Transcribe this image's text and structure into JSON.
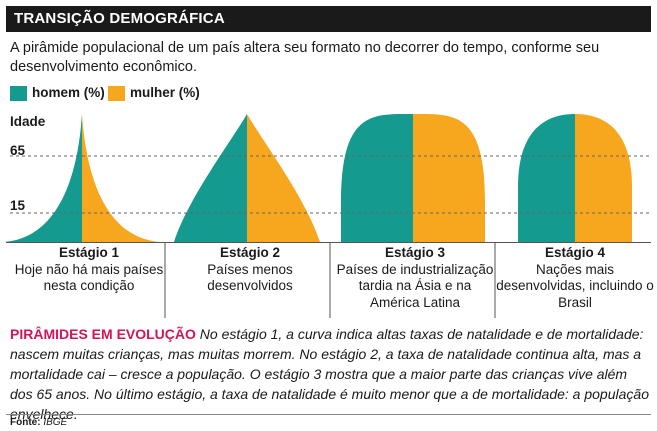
{
  "header": {
    "title": "TRANSIÇÃO DEMOGRÁFICA"
  },
  "subtitle": "A pirâmide populacional de um país altera seu formato no decorrer do tempo, conforme seu desenvolvimento econômico.",
  "colors": {
    "men": "#149a8f",
    "women": "#f7a71e",
    "note_highlight": "#d4145a"
  },
  "chart_data": {
    "type": "area",
    "legend": [
      "homem (%)",
      "mulher (%)"
    ],
    "ylabel": "Idade",
    "yticks": [
      65,
      15
    ],
    "ylim": [
      0,
      100
    ],
    "legend_position": "top-left",
    "stages": [
      {
        "title": "Estágio 1",
        "description": "Hoje não há mais países nesta condição",
        "shape": "concave"
      },
      {
        "title": "Estágio 2",
        "description": "Países menos desenvolvidos",
        "shape": "triangle"
      },
      {
        "title": "Estágio 3",
        "description": "Países de industrialização tardia na Ásia e na América Latina",
        "shape": "dome"
      },
      {
        "title": "Estágio 4",
        "description": "Nações mais desenvolvidas, incluindo o Brasil",
        "shape": "bullet"
      }
    ]
  },
  "note": {
    "heading": "PIRÂMIDES EM EVOLUÇÃO",
    "text": "No estágio 1, a curva indica altas taxas de natalidade e de mortalidade: nascem muitas crianças, mas muitas morrem. No estágio 2, a taxa de natalidade continua alta, mas a mortalidade cai – cresce a população. O estágio 3 mostra que a maior parte das crianças vive além dos 65 anos. No último estágio, a taxa de natalidade é muito menor que a de mortalidade: a população envelhece."
  },
  "source": {
    "label": "Fonte:",
    "value": "IBGE"
  }
}
